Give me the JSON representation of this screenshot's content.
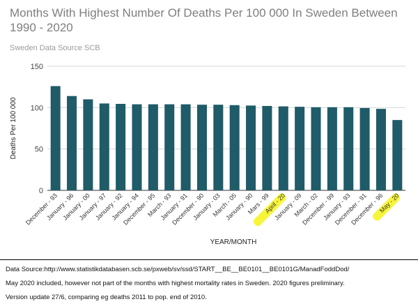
{
  "chart_data": {
    "type": "bar",
    "title": "Months With Highest Number Of Deaths Per 100 000 In Sweden Between 1990 - 2020",
    "subtitle": "Sweden Data Source SCB",
    "xlabel": "YEAR/MONTH",
    "ylabel": "Deaths Per 100 000",
    "ylim": [
      0,
      150
    ],
    "yticks": [
      0,
      50,
      100,
      150
    ],
    "grid": true,
    "categories": [
      "December - 93",
      "January - 96",
      "January - 00",
      "January - 97",
      "January - 92",
      "January - 94",
      "December - 95",
      "March - 93",
      "January - 91",
      "December - 90",
      "January - 03",
      "March - 05",
      "January - 90",
      "Mars - 99",
      "April - 20",
      "January - 09",
      "March - 02",
      "December - 99",
      "January - 93",
      "December - 91",
      "December - 96",
      "May - 20"
    ],
    "values": [
      126,
      114,
      110,
      105,
      104.5,
      104,
      104,
      104,
      104,
      103.5,
      103.5,
      103,
      102.5,
      102,
      101.5,
      101,
      100.5,
      100.5,
      100.5,
      99.5,
      98.5,
      85
    ],
    "highlighted": [
      "April - 20",
      "May - 20"
    ],
    "bar_color": "#1f5b68",
    "highlight_color": "#f7f53a",
    "grid_color": "#d6d6d6"
  },
  "notes": {
    "line1": "Data Source:http://www.statistikdatabasen.scb.se/pxweb/sv/ssd/START__BE__BE0101__BE0101G/ManadFoddDod/",
    "line2": "May 2020 included, however not part of the months with highest mortality rates in Sweden. 2020 figures preliminary.",
    "line3": "Version update 27/6, comparing eg deaths 2011 to pop. end of 2010."
  }
}
